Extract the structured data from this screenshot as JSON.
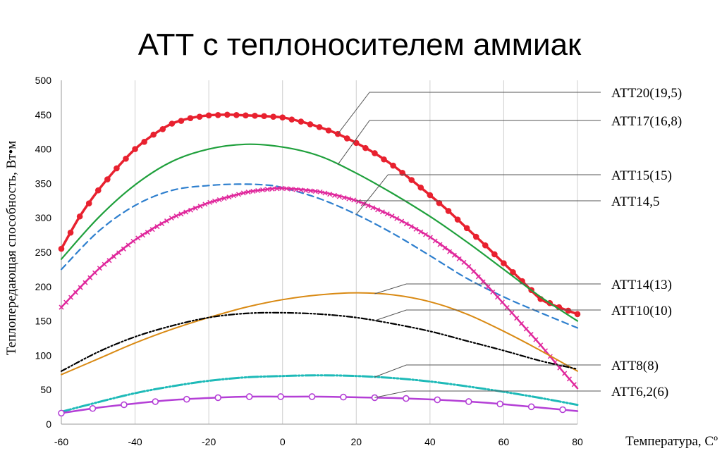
{
  "chart_data": {
    "type": "line",
    "title": "АТТ с теплоносителем аммиак",
    "xlabel": "Температура, Сº",
    "ylabel": "Теплопередающая способность, Вт•м",
    "xlim": [
      -60,
      80
    ],
    "ylim": [
      0,
      500
    ],
    "xticks": [
      -60,
      -40,
      -20,
      0,
      20,
      40,
      60,
      80
    ],
    "yticks": [
      0,
      50,
      100,
      150,
      200,
      250,
      300,
      350,
      400,
      450,
      500
    ],
    "grid": "x-vertical",
    "legend": "right-callouts",
    "series": [
      {
        "name": "АТТ20(19,5)",
        "color": "#e8212f",
        "x": [
          -60,
          -55,
          -50,
          -45,
          -40,
          -35,
          -30,
          -25,
          -20,
          -15,
          -10,
          -5,
          0,
          5,
          10,
          15,
          20,
          25,
          30,
          35,
          40,
          45,
          50,
          55,
          60,
          65,
          70,
          75,
          80
        ],
        "values": [
          255,
          302,
          340,
          372,
          400,
          421,
          437,
          445,
          449,
          450,
          449,
          448,
          446,
          440,
          432,
          422,
          409,
          394,
          376,
          355,
          333,
          310,
          285,
          260,
          234,
          208,
          182,
          170,
          160
        ]
      },
      {
        "name": "АТТ17(16,8)",
        "color": "#1fa03c",
        "x": [
          -60,
          -50,
          -40,
          -30,
          -20,
          -10,
          0,
          10,
          20,
          30,
          40,
          50,
          60,
          70,
          80
        ],
        "values": [
          240,
          300,
          348,
          382,
          400,
          407,
          403,
          390,
          365,
          335,
          302,
          265,
          225,
          185,
          150
        ]
      },
      {
        "name": "АТТ15(15)",
        "color": "#2e7fce",
        "x": [
          -60,
          -50,
          -40,
          -30,
          -20,
          -12,
          -5,
          0,
          10,
          20,
          30,
          40,
          50,
          60,
          70,
          80
        ],
        "values": [
          225,
          280,
          318,
          340,
          347,
          349,
          348,
          344,
          328,
          305,
          277,
          245,
          212,
          185,
          162,
          140
        ]
      },
      {
        "name": "АТТ14,5",
        "color": "#e0289c",
        "x": [
          -60,
          -50,
          -40,
          -30,
          -20,
          -10,
          -5,
          0,
          10,
          20,
          30,
          40,
          50,
          60,
          65,
          70,
          75,
          80
        ],
        "values": [
          170,
          225,
          268,
          300,
          322,
          337,
          341,
          343,
          338,
          325,
          302,
          272,
          232,
          175,
          145,
          115,
          83,
          52
        ]
      },
      {
        "name": "АТТ14(13)",
        "color": "#d98a14",
        "x": [
          -60,
          -50,
          -40,
          -30,
          -20,
          -10,
          0,
          10,
          20,
          30,
          40,
          50,
          60,
          70,
          80
        ],
        "values": [
          72,
          95,
          118,
          138,
          155,
          170,
          181,
          188,
          191,
          188,
          178,
          160,
          135,
          107,
          77
        ]
      },
      {
        "name": "АТТ10(10)",
        "color": "#000000",
        "x": [
          -60,
          -50,
          -40,
          -30,
          -20,
          -10,
          0,
          10,
          20,
          30,
          40,
          50,
          60,
          70,
          80
        ],
        "values": [
          77,
          105,
          127,
          143,
          155,
          161,
          162,
          160,
          155,
          146,
          135,
          121,
          107,
          92,
          80
        ]
      },
      {
        "name": "АТТ8(8)",
        "color": "#1ebab8",
        "x": [
          -60,
          -50,
          -40,
          -30,
          -20,
          -10,
          0,
          10,
          20,
          30,
          40,
          50,
          60,
          70,
          80
        ],
        "values": [
          18,
          32,
          45,
          55,
          63,
          68,
          70,
          71,
          70,
          67,
          62,
          55,
          47,
          38,
          28
        ]
      },
      {
        "name": "АТТ6,2(6)",
        "color": "#b43fd6",
        "x": [
          -60,
          -50,
          -40,
          -30,
          -20,
          -10,
          0,
          10,
          20,
          30,
          40,
          50,
          60,
          70,
          80
        ],
        "values": [
          16,
          24,
          30,
          35,
          38,
          40,
          40,
          40,
          39,
          38,
          36,
          33,
          29,
          24,
          19
        ]
      }
    ]
  }
}
